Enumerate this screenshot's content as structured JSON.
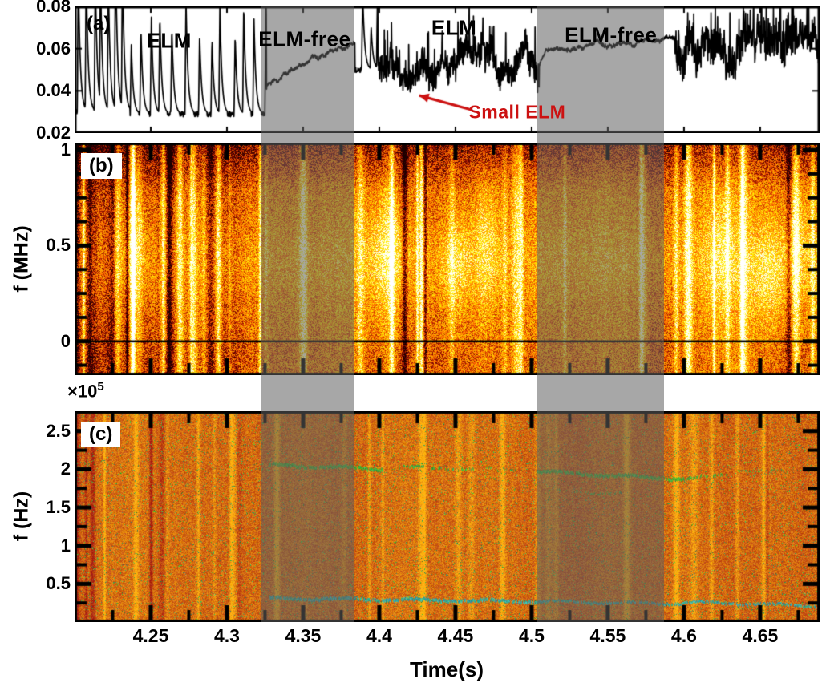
{
  "figure_labels": {
    "xlabel": "Time(s)",
    "panel_a_tag": "(a)",
    "panel_b_tag": "(b)",
    "panel_c_tag": "(c)",
    "ylabel_b": "f (MHz)",
    "ylabel_c": "f (Hz)",
    "y_scale_c_prefix": "×10",
    "y_scale_c_exp": "5",
    "small_elm_label": "Small ELM",
    "small_elm_color": "#cc1111"
  },
  "axes": {
    "xlim": [
      4.2,
      4.689
    ],
    "x_major_ticks": [
      4.25,
      4.3,
      4.35,
      4.4,
      4.45,
      4.5,
      4.55,
      4.6,
      4.65
    ],
    "x_tick_labels": [
      "4.25",
      "4.3",
      "4.35",
      "4.4",
      "4.45",
      "4.5",
      "4.55",
      "4.6",
      "4.65"
    ],
    "x_minor_step": 0.025
  },
  "shaded_regions": [
    {
      "t0": 4.322,
      "t1": 4.383,
      "label": "ELM-free phase 1"
    },
    {
      "t0": 4.503,
      "t1": 4.587,
      "label": "ELM-free phase 2"
    }
  ],
  "chart_data": [
    {
      "panel": "a",
      "type": "line",
      "description": "Edge recycling signal vs time showing large ELM spikes, ELM-free phases with smooth rise, and small-ELM jagged phases.",
      "ylim": [
        0.02,
        0.08
      ],
      "y_ticks": [
        0.08,
        0.06,
        0.04,
        0.02
      ],
      "y_tick_labels": [
        "0.08",
        "0.06",
        "0.04",
        "0.02"
      ],
      "seed": 11,
      "segments": [
        {
          "type": "elmy",
          "t0": 4.2,
          "t1": 4.236,
          "base": 0.03,
          "spike_gap": 0.0048,
          "spike_min": 0.045,
          "spike_max": 0.085
        },
        {
          "type": "elmy",
          "t0": 4.236,
          "t1": 4.326,
          "base": 0.029,
          "spike_gap": 0.0075,
          "spike_min": 0.028,
          "spike_max": 0.06
        },
        {
          "type": "elmfree",
          "t0": 4.326,
          "t1": 4.384,
          "v0": 0.041,
          "v1": 0.063
        },
        {
          "type": "elmy",
          "t0": 4.384,
          "t1": 4.399,
          "base": 0.05,
          "spike_gap": 0.006,
          "spike_min": 0.02,
          "spike_max": 0.04
        },
        {
          "type": "small",
          "t0": 4.399,
          "t1": 4.505,
          "base": 0.054,
          "jitter": 0.013,
          "spike_prob": 0.05
        },
        {
          "type": "elmfree",
          "t0": 4.505,
          "t1": 4.594,
          "v0": 0.059,
          "v1": 0.064
        },
        {
          "type": "small",
          "t0": 4.594,
          "t1": 4.69,
          "base": 0.06,
          "jitter": 0.016,
          "spike_prob": 0.1
        }
      ],
      "annotations": [
        {
          "text": "ELM",
          "t": 4.262,
          "frac_y": 0.27
        },
        {
          "text": "ELM-free",
          "t": 4.351,
          "frac_y": 0.26
        },
        {
          "text": "ELM",
          "t": 4.449,
          "frac_y": 0.17
        },
        {
          "text": "ELM-free",
          "t": 4.552,
          "frac_y": 0.23
        }
      ],
      "small_elm": {
        "t": 4.4905,
        "frac_y": 0.835
      },
      "arrow": {
        "from": [
          4.4605,
          0.031
        ],
        "to": [
          4.4263,
          0.0378
        ]
      }
    },
    {
      "panel": "b",
      "type": "heatmap",
      "colormap": "hot",
      "description": "Magnetic fluctuation spectrogram 0-1 MHz; broadband bright vertical streaks at ELM times, more uniform during ELM-free phases.",
      "ylim_visible": [
        -0.177,
        1.038
      ],
      "y_ticks": [
        1,
        0.5,
        0
      ],
      "y_tick_labels": [
        "1",
        "0.5",
        "0"
      ],
      "zero_line_f": 0,
      "seed": 22,
      "segments": [
        {
          "t": [
            4.2,
            4.326
          ],
          "base": 0.46,
          "streaks": 0.9,
          "dark": 0.35
        },
        {
          "t": [
            4.326,
            4.384
          ],
          "base": 0.55,
          "streaks": 0.1,
          "dark": 0.1
        },
        {
          "t": [
            4.384,
            4.505
          ],
          "base": 0.51,
          "streaks": 0.38,
          "dark": 0.15
        },
        {
          "t": [
            4.505,
            4.594
          ],
          "base": 0.54,
          "streaks": 0.12,
          "dark": 0.1
        },
        {
          "t": [
            4.594,
            4.69
          ],
          "base": 0.51,
          "streaks": 0.4,
          "dark": 0.15
        }
      ],
      "blobs": [
        {
          "t": 4.24,
          "f": 0.5,
          "rt": 0.01,
          "rf": 0.35,
          "amp": 0.15
        },
        {
          "t": 4.405,
          "f": 0.45,
          "rt": 0.012,
          "rf": 0.3,
          "amp": 0.28
        },
        {
          "t": 4.45,
          "f": 0.4,
          "rt": 0.01,
          "rf": 0.25,
          "amp": 0.22
        },
        {
          "t": 4.47,
          "f": 0.5,
          "rt": 0.008,
          "rf": 0.3,
          "amp": 0.2
        },
        {
          "t": 4.625,
          "f": 0.45,
          "rt": 0.01,
          "rf": 0.3,
          "amp": 0.2
        },
        {
          "t": 4.655,
          "f": 0.35,
          "rt": 0.012,
          "rf": 0.25,
          "amp": 0.25
        },
        {
          "t": 4.675,
          "f": 0.5,
          "rt": 0.008,
          "rf": 0.3,
          "amp": 0.2
        }
      ]
    },
    {
      "panel": "c",
      "type": "heatmap",
      "colormap": "jet-orange",
      "y_unit_scale": "1e5 Hz",
      "description": "Density fluctuation spectrogram 0-2.5e5 Hz; coherent mode near 2e5 Hz during ELM-free phases and low-frequency mode near 0.25e5 Hz.",
      "ylim_visible": [
        0,
        2.76
      ],
      "y_ticks": [
        2.5,
        2,
        1.5,
        1,
        0.5
      ],
      "y_tick_labels": [
        "2.5",
        "2",
        "1.5",
        "1",
        "0.5"
      ],
      "seed": 33,
      "green_speckle_prob": 0.048,
      "segments": [
        {
          "t": [
            4.2,
            4.326
          ],
          "base": 0.52,
          "streaks": 0.45,
          "dark": 0.3
        },
        {
          "t": [
            4.326,
            4.384
          ],
          "base": 0.5,
          "streaks": 0.15,
          "dark": 0.2
        },
        {
          "t": [
            4.384,
            4.505
          ],
          "base": 0.51,
          "streaks": 0.3,
          "dark": 0.2
        },
        {
          "t": [
            4.505,
            4.594
          ],
          "base": 0.5,
          "streaks": 0.15,
          "dark": 0.2
        },
        {
          "t": [
            4.594,
            4.69
          ],
          "base": 0.51,
          "streaks": 0.3,
          "dark": 0.2
        }
      ],
      "modes": [
        {
          "t": [
            4.328,
            4.402
          ],
          "f": [
            2.06,
            2.0
          ],
          "color": "green",
          "width": 4,
          "density": 0.95
        },
        {
          "t": [
            4.41,
            4.462
          ],
          "f": [
            2.03,
            2.0
          ],
          "color": "green",
          "width": 3,
          "density": 0.45
        },
        {
          "t": [
            4.47,
            4.495
          ],
          "f": [
            2.01,
            1.99
          ],
          "color": "green",
          "width": 2,
          "density": 0.35
        },
        {
          "t": [
            4.503,
            4.6
          ],
          "f": [
            1.97,
            1.87
          ],
          "color": "green",
          "width": 4,
          "density": 0.95
        },
        {
          "t": [
            4.6,
            4.628
          ],
          "f": [
            1.87,
            1.93
          ],
          "color": "green",
          "width": 3,
          "density": 0.6
        },
        {
          "t": [
            4.636,
            4.668
          ],
          "f": [
            1.99,
            1.97
          ],
          "color": "green",
          "width": 2,
          "density": 0.35
        },
        {
          "t": [
            4.51,
            4.56
          ],
          "f": [
            1.72,
            1.68
          ],
          "color": "green",
          "width": 2,
          "density": 0.3
        },
        {
          "t": [
            4.328,
            4.503
          ],
          "f": [
            0.31,
            0.27
          ],
          "color": "teal",
          "width": 4,
          "density": 0.9
        },
        {
          "t": [
            4.503,
            4.6
          ],
          "f": [
            0.27,
            0.24
          ],
          "color": "teal",
          "width": 3,
          "density": 0.85
        },
        {
          "t": [
            4.6,
            4.689
          ],
          "f": [
            0.26,
            0.21
          ],
          "color": "teal",
          "width": 3,
          "density": 0.8
        }
      ]
    }
  ]
}
